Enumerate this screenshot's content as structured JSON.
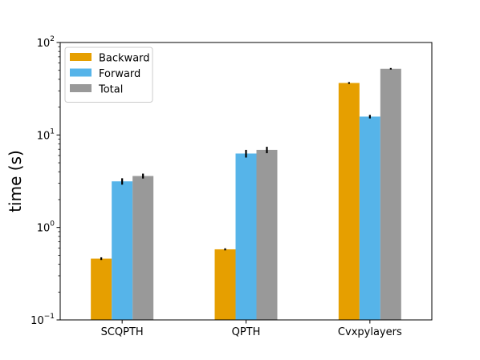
{
  "chart_data": {
    "type": "bar",
    "ylabel": "time (s)",
    "yscale": "log",
    "ylim": [
      0.1,
      100
    ],
    "yticks": [
      {
        "base": "10",
        "exp": "−1",
        "value": 0.1
      },
      {
        "base": "10",
        "exp": "0",
        "value": 1
      },
      {
        "base": "10",
        "exp": "1",
        "value": 10
      },
      {
        "base": "10",
        "exp": "2",
        "value": 100
      }
    ],
    "categories": [
      "SCQPTH",
      "QPTH",
      "Cvxpylayers"
    ],
    "legend_position": "top-left",
    "grid": false,
    "series": [
      {
        "name": "Backward",
        "color": "#E69F00",
        "values": [
          0.46,
          0.58,
          36.5
        ],
        "errors": [
          0.015,
          0.015,
          0.8
        ]
      },
      {
        "name": "Forward",
        "color": "#56B4E9",
        "values": [
          3.15,
          6.3,
          15.8
        ],
        "errors": [
          0.25,
          0.6,
          0.7
        ]
      },
      {
        "name": "Total",
        "color": "#999999",
        "values": [
          3.6,
          6.9,
          52.0
        ],
        "errors": [
          0.22,
          0.55,
          1.0
        ]
      }
    ]
  }
}
